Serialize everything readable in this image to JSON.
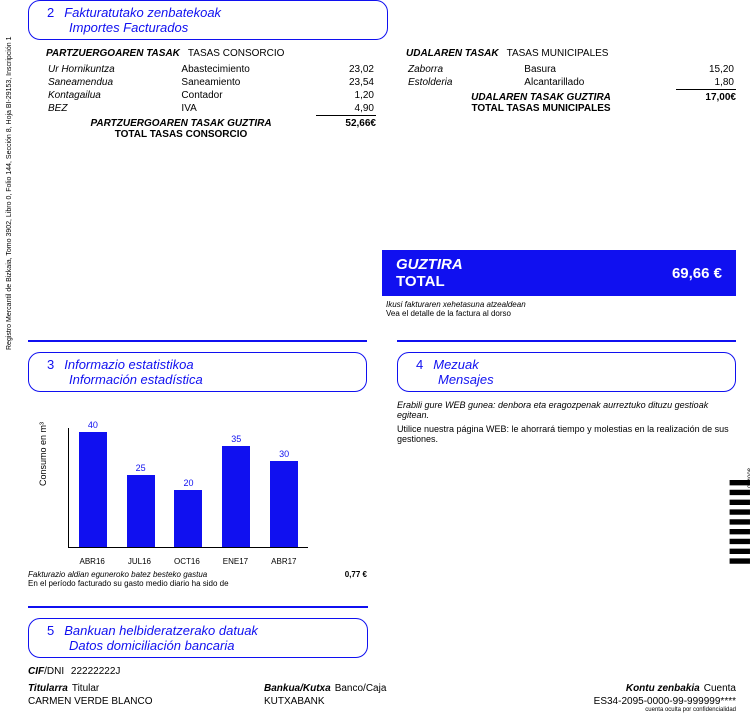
{
  "sideText": "Registro Mercantil de Bizkaia, Tomo 3902, Libro 0, Folio 144, Sección 8, Hoja BI-29153, Inscripción 1",
  "s2": {
    "num": "2",
    "titleEu": "Fakturatutako zenbatekoak",
    "titleEs": "Importes Facturados",
    "left": {
      "hdrEu": "PARTZUERGOAREN TASAK",
      "hdrEs": "TASAS CONSORCIO",
      "rows": [
        {
          "eu": "Ur Hornikuntza",
          "es": "Abastecimiento",
          "amt": "23,02"
        },
        {
          "eu": "Saneamendua",
          "es": "Saneamiento",
          "amt": "23,54"
        },
        {
          "eu": "Kontagailua",
          "es": "Contador",
          "amt": "1,20"
        },
        {
          "eu": "BEZ",
          "es": "IVA",
          "amt": "4,90"
        }
      ],
      "totEu": "PARTZUERGOAREN TASAK GUZTIRA",
      "totEs": "TOTAL TASAS CONSORCIO",
      "totAmt": "52,66€"
    },
    "right": {
      "hdrEu": "UDALAREN TASAK",
      "hdrEs": "TASAS MUNICIPALES",
      "rows": [
        {
          "eu": "Zaborra",
          "es": "Basura",
          "amt": "15,20"
        },
        {
          "eu": "Estolderia",
          "es": "Alcantarillado",
          "amt": "1,80"
        }
      ],
      "totEu": "UDALAREN TASAK GUZTIRA",
      "totEs": "TOTAL TASAS MUNICIPALES",
      "totAmt": "17,00€"
    }
  },
  "total": {
    "eu": "GUZTIRA",
    "es": "TOTAL",
    "amt": "69,66 €",
    "noteEu": "Ikusi fakturaren xehetasuna atzealdean",
    "noteEs": "Vea el detalle de la factura al dorso"
  },
  "s3": {
    "num": "3",
    "titleEu": "Informazio estatistikoa",
    "titleEs": "Información estadística",
    "chart": {
      "type": "bar",
      "ylabel": "Consumo en m³",
      "max": 40,
      "barColor": "#1010f0",
      "categories": [
        "ABR16",
        "JUL16",
        "OCT16",
        "ENE17",
        "ABR17"
      ],
      "values": [
        40,
        25,
        20,
        35,
        30
      ]
    },
    "noteEu": "Fakturazio aldian eguneroko batez besteko gastua",
    "noteEs": "En el período facturado su gasto medio diario ha sido de",
    "noteAmt": "0,77  €"
  },
  "s4": {
    "num": "4",
    "titleEu": "Mezuak",
    "titleEs": "Mensajes",
    "msgEu": "Erabili gure WEB gunea: denbora eta eragozpenak aurreztuko dituzu gestioak egitean.",
    "msgEs": "Utilice nuestra página WEB: le ahorrará tiempo y molestias en la realización de sus gestiones."
  },
  "s5": {
    "num": "5",
    "titleEu": "Bankuan helbideratzerako datuak",
    "titleEs": "Datos domiciliación bancaria",
    "cifLabelEu": "CIF",
    "cifLabelEs": "/DNI",
    "cif": "22222222J",
    "c1Eu": "Titularra",
    "c1Es": "Titular",
    "c1V": "CARMEN VERDE BLANCO",
    "c2Eu": "Bankua/Kutxa",
    "c2Es": "Banco/Caja",
    "c2V": "KUTXABANK",
    "c3Eu": "Kontu zenbakia",
    "c3Es": "Cuenta",
    "c3V": "ES34-2095-0000-99-999999****",
    "c3Note": "cuenta oculta por confidencialidad"
  },
  "barcodeNum": "004008"
}
